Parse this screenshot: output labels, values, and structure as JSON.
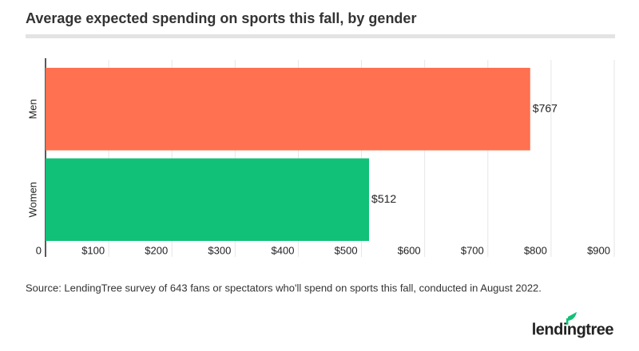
{
  "chart_data": {
    "type": "hbar",
    "title": "Average expected spending on sports this fall, by gender",
    "categories": [
      "Men",
      "Women"
    ],
    "values": [
      767,
      512
    ],
    "value_labels": [
      "$767",
      "$512"
    ],
    "colors": [
      "#ff7150",
      "#10c177"
    ],
    "xlim": [
      0,
      900
    ],
    "xticks": [
      0,
      {
        "value": 100,
        "label": "$100"
      },
      {
        "value": 200,
        "label": "$200"
      },
      {
        "value": 300,
        "label": "$300"
      },
      {
        "value": 400,
        "label": "$400"
      },
      {
        "value": 500,
        "label": "$500"
      },
      {
        "value": 600,
        "label": "$600"
      },
      {
        "value": 700,
        "label": "$700"
      },
      {
        "value": 800,
        "label": "$800"
      },
      {
        "value": 900,
        "label": "$900"
      }
    ],
    "grid": true,
    "source": "Source: LendingTree survey of 643 fans or spectators who'll spend on sports this fall, conducted in August 2022."
  },
  "logo": "lendingtree"
}
